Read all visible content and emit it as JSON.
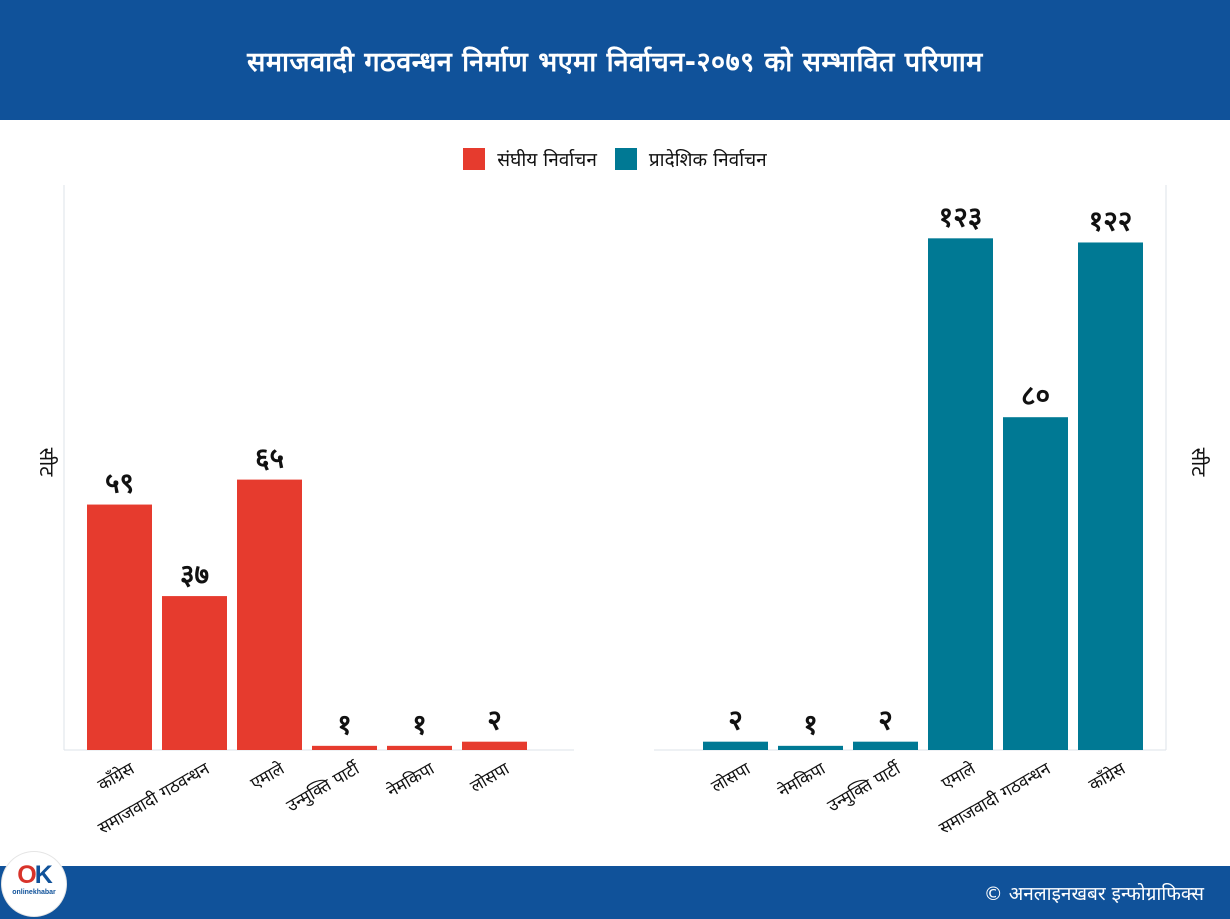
{
  "title": "समाजवादी गठवन्धन निर्माण भएमा निर्वाचन-२०७९ को सम्भावित परिणाम",
  "legend": [
    {
      "label": "संघीय  निर्वाचन",
      "color": "#e63b2e"
    },
    {
      "label": "प्रादेशिक  निर्वाचन",
      "color": "#007994"
    }
  ],
  "footer": {
    "credit": "© अनलाइनखबर इन्फोग्राफिक्स",
    "logo_text": "OK",
    "logo_sub": "onlinekhabar"
  },
  "chart_data": [
    {
      "type": "bar",
      "series_name": "संघीय  निर्वाचन",
      "color": "#e63b2e",
      "ylabel": "सीट",
      "ylim": [
        0,
        130
      ],
      "categories": [
        "काँग्रेस",
        "समाजवादी  गठवन्धन",
        "एमाले",
        "उन्मुक्ति  पार्टी",
        "नेमकिपा",
        "लोसपा"
      ],
      "values": [
        59,
        37,
        65,
        1,
        1,
        2
      ],
      "value_labels": [
        "५९",
        "३७",
        "६५",
        "१",
        "१",
        "२"
      ]
    },
    {
      "type": "bar",
      "series_name": "प्रादेशिक  निर्वाचन",
      "color": "#007994",
      "ylabel": "सीट",
      "ylim": [
        0,
        130
      ],
      "categories": [
        "लोसपा",
        "नेमकिपा",
        "उन्मुक्ति  पार्टी",
        "एमाले",
        "समाजवादी  गठवन्धन",
        "काँग्रेस"
      ],
      "values": [
        2,
        1,
        2,
        123,
        80,
        122
      ],
      "value_labels": [
        "२",
        "१",
        "२",
        "१२३",
        "८०",
        "१२२"
      ]
    }
  ]
}
